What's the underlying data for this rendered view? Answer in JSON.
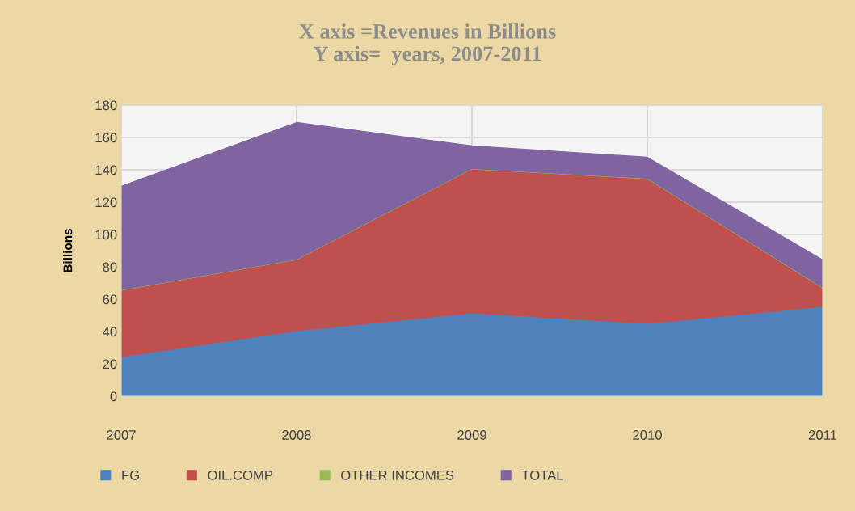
{
  "chart_data": {
    "type": "area",
    "stacked": true,
    "title": "X axis =Revenues in Billions\nY axis=  years, 2007-2011",
    "ylabel": "Billions",
    "categories": [
      "2007",
      "2008",
      "2009",
      "2010",
      "2011"
    ],
    "series": [
      {
        "name": "FG",
        "color": "#4f81bd",
        "values": [
          24.5,
          40.5,
          51.5,
          45,
          55.5
        ]
      },
      {
        "name": "OIL.COMP",
        "color": "#c0504d",
        "values": [
          41,
          44,
          89,
          89.5,
          11.5
        ]
      },
      {
        "name": "OTHER INCOMES",
        "color": "#9bbb59",
        "values": [
          0.3,
          0.3,
          0.3,
          0.3,
          0.3
        ]
      },
      {
        "name": "TOTAL",
        "color": "#8064a2",
        "values": [
          64,
          84.5,
          14,
          13,
          17
        ]
      }
    ],
    "ylim": [
      0,
      180
    ],
    "yticks": [
      0,
      20,
      40,
      60,
      80,
      100,
      120,
      140,
      160,
      180
    ],
    "grid": true,
    "legend": "bottom"
  }
}
